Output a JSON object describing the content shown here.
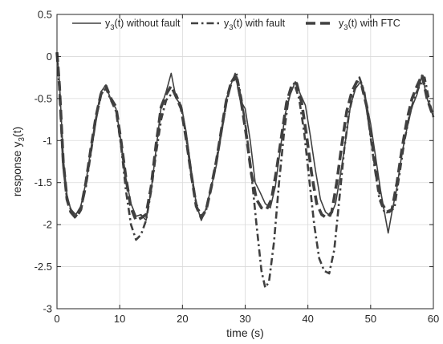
{
  "chart_data": {
    "type": "line",
    "xlabel": "time (s)",
    "ylabel": {
      "base": "response y",
      "sub": "3",
      "suffix": "(t)"
    },
    "xlim": [
      0,
      60
    ],
    "ylim": [
      -3,
      0.5
    ],
    "xticks": [
      0,
      10,
      20,
      30,
      40,
      50,
      60
    ],
    "yticks": [
      0.5,
      0,
      -0.5,
      -1,
      -1.5,
      -2,
      -2.5,
      -3
    ],
    "xtick_labels": [
      "0",
      "10",
      "20",
      "30",
      "40",
      "50",
      "60"
    ],
    "ytick_labels": [
      "0.5",
      "0",
      "-0.5",
      "-1",
      "-1.5",
      "-2",
      "-2.5",
      "-3"
    ],
    "grid": true,
    "legend_position": "top",
    "series": [
      {
        "legend": {
          "base": "y",
          "sub": "3",
          "suffix": "(t) without fault"
        },
        "style": "solid",
        "color": "#404040",
        "points": [
          [
            0,
            0.05
          ],
          [
            0.4,
            -0.3
          ],
          [
            1,
            -1.2
          ],
          [
            1.6,
            -1.65
          ],
          [
            2.2,
            -1.82
          ],
          [
            3,
            -1.88
          ],
          [
            3.8,
            -1.78
          ],
          [
            4.6,
            -1.5
          ],
          [
            5.4,
            -1.1
          ],
          [
            6.2,
            -0.72
          ],
          [
            7,
            -0.42
          ],
          [
            7.8,
            -0.34
          ],
          [
            8.6,
            -0.52
          ],
          [
            9.4,
            -0.62
          ],
          [
            10.2,
            -1.0
          ],
          [
            11,
            -1.45
          ],
          [
            11.8,
            -1.75
          ],
          [
            12.6,
            -1.9
          ],
          [
            13.4,
            -1.88
          ],
          [
            14.2,
            -1.95
          ],
          [
            15,
            -1.6
          ],
          [
            15.8,
            -1.1
          ],
          [
            16.6,
            -0.6
          ],
          [
            17.4,
            -0.42
          ],
          [
            18.2,
            -0.2
          ],
          [
            19,
            -0.5
          ],
          [
            19.8,
            -0.58
          ],
          [
            20.6,
            -0.9
          ],
          [
            21.4,
            -1.35
          ],
          [
            22.2,
            -1.75
          ],
          [
            23,
            -1.95
          ],
          [
            23.8,
            -1.8
          ],
          [
            24.6,
            -1.55
          ],
          [
            25.4,
            -1.3
          ],
          [
            26.2,
            -0.9
          ],
          [
            27,
            -0.5
          ],
          [
            27.8,
            -0.32
          ],
          [
            28.4,
            -0.2
          ],
          [
            29.2,
            -0.52
          ],
          [
            30,
            -0.62
          ],
          [
            30.8,
            -1.0
          ],
          [
            31.6,
            -1.5
          ],
          [
            32.4,
            -1.62
          ],
          [
            33.2,
            -1.75
          ],
          [
            34,
            -1.8
          ],
          [
            34.8,
            -1.55
          ],
          [
            35.6,
            -1.1
          ],
          [
            36.4,
            -0.68
          ],
          [
            37.2,
            -0.45
          ],
          [
            38,
            -0.3
          ],
          [
            38.8,
            -0.45
          ],
          [
            39.6,
            -0.58
          ],
          [
            40.4,
            -0.95
          ],
          [
            41.2,
            -1.35
          ],
          [
            42,
            -1.7
          ],
          [
            42.8,
            -1.85
          ],
          [
            43.6,
            -1.9
          ],
          [
            44.4,
            -1.75
          ],
          [
            45.2,
            -1.4
          ],
          [
            46,
            -1.0
          ],
          [
            46.8,
            -0.58
          ],
          [
            47.6,
            -0.38
          ],
          [
            48.4,
            -0.3
          ],
          [
            49.2,
            -0.52
          ],
          [
            50,
            -0.8
          ],
          [
            50.8,
            -1.2
          ],
          [
            51.6,
            -1.6
          ],
          [
            52.2,
            -1.85
          ],
          [
            52.8,
            -2.1
          ],
          [
            53.4,
            -1.85
          ],
          [
            54.2,
            -1.55
          ],
          [
            55,
            -1.15
          ],
          [
            55.8,
            -0.85
          ],
          [
            56.6,
            -0.6
          ],
          [
            57.4,
            -0.45
          ],
          [
            58.2,
            -0.22
          ],
          [
            59,
            -0.5
          ],
          [
            60,
            -0.72
          ]
        ]
      },
      {
        "legend": {
          "base": "y",
          "sub": "3",
          "suffix": "(t) with fault"
        },
        "style": "dashdot",
        "color": "#404040",
        "points": [
          [
            0,
            0.05
          ],
          [
            0.4,
            -0.4
          ],
          [
            1,
            -1.3
          ],
          [
            1.6,
            -1.7
          ],
          [
            2.2,
            -1.82
          ],
          [
            3,
            -1.9
          ],
          [
            3.8,
            -1.82
          ],
          [
            4.6,
            -1.55
          ],
          [
            5.4,
            -1.15
          ],
          [
            6.2,
            -0.75
          ],
          [
            7,
            -0.45
          ],
          [
            7.8,
            -0.38
          ],
          [
            8.6,
            -0.52
          ],
          [
            9.4,
            -0.65
          ],
          [
            10.2,
            -1.05
          ],
          [
            11,
            -1.6
          ],
          [
            11.8,
            -2.0
          ],
          [
            12.6,
            -2.18
          ],
          [
            13.4,
            -2.12
          ],
          [
            14.2,
            -1.95
          ],
          [
            15,
            -1.6
          ],
          [
            15.8,
            -1.15
          ],
          [
            16.6,
            -0.75
          ],
          [
            17.4,
            -0.52
          ],
          [
            18.2,
            -0.45
          ],
          [
            19,
            -0.45
          ],
          [
            19.8,
            -0.6
          ],
          [
            20.6,
            -0.95
          ],
          [
            21.4,
            -1.4
          ],
          [
            22.2,
            -1.75
          ],
          [
            23,
            -1.9
          ],
          [
            23.8,
            -1.82
          ],
          [
            24.6,
            -1.55
          ],
          [
            25.4,
            -1.25
          ],
          [
            26.2,
            -0.9
          ],
          [
            27,
            -0.55
          ],
          [
            27.8,
            -0.3
          ],
          [
            28.6,
            -0.2
          ],
          [
            29.4,
            -0.5
          ],
          [
            30.2,
            -0.9
          ],
          [
            31,
            -1.4
          ],
          [
            31.8,
            -2.0
          ],
          [
            32.6,
            -2.55
          ],
          [
            33.2,
            -2.75
          ],
          [
            33.8,
            -2.68
          ],
          [
            34.6,
            -2.2
          ],
          [
            35.4,
            -1.5
          ],
          [
            36.2,
            -0.9
          ],
          [
            37,
            -0.45
          ],
          [
            37.8,
            -0.32
          ],
          [
            38.6,
            -0.5
          ],
          [
            39.4,
            -0.9
          ],
          [
            40.2,
            -1.45
          ],
          [
            41,
            -2.0
          ],
          [
            41.8,
            -2.4
          ],
          [
            42.6,
            -2.55
          ],
          [
            43.4,
            -2.58
          ],
          [
            44.2,
            -2.3
          ],
          [
            45,
            -1.7
          ],
          [
            45.8,
            -1.1
          ],
          [
            46.6,
            -0.65
          ],
          [
            47.4,
            -0.4
          ],
          [
            48.2,
            -0.25
          ],
          [
            49,
            -0.42
          ],
          [
            49.8,
            -0.85
          ],
          [
            50.6,
            -1.3
          ],
          [
            51.4,
            -1.7
          ],
          [
            52.2,
            -1.85
          ],
          [
            53,
            -1.85
          ],
          [
            53.8,
            -1.8
          ],
          [
            54.6,
            -1.4
          ],
          [
            55.4,
            -1.0
          ],
          [
            56.2,
            -0.7
          ],
          [
            57,
            -0.48
          ],
          [
            57.8,
            -0.35
          ],
          [
            58.6,
            -0.25
          ],
          [
            59.4,
            -0.55
          ],
          [
            60,
            -0.72
          ]
        ]
      },
      {
        "legend": {
          "base": "y",
          "sub": "3",
          "suffix": "(t) with FTC"
        },
        "style": "dashed",
        "color": "#404040",
        "points": [
          [
            0,
            0.05
          ],
          [
            0.4,
            -0.35
          ],
          [
            1,
            -1.25
          ],
          [
            1.6,
            -1.7
          ],
          [
            2.2,
            -1.85
          ],
          [
            3,
            -1.92
          ],
          [
            3.8,
            -1.82
          ],
          [
            4.6,
            -1.5
          ],
          [
            5.4,
            -1.1
          ],
          [
            6.2,
            -0.72
          ],
          [
            7,
            -0.45
          ],
          [
            7.8,
            -0.35
          ],
          [
            8.6,
            -0.5
          ],
          [
            9.4,
            -0.6
          ],
          [
            10.2,
            -1.0
          ],
          [
            11,
            -1.45
          ],
          [
            11.8,
            -1.8
          ],
          [
            12.6,
            -1.95
          ],
          [
            13.4,
            -1.92
          ],
          [
            14.2,
            -1.88
          ],
          [
            15,
            -1.55
          ],
          [
            15.8,
            -1.05
          ],
          [
            16.6,
            -0.6
          ],
          [
            17.4,
            -0.45
          ],
          [
            18.2,
            -0.35
          ],
          [
            19,
            -0.48
          ],
          [
            19.8,
            -0.62
          ],
          [
            20.6,
            -0.98
          ],
          [
            21.4,
            -1.4
          ],
          [
            22.2,
            -1.78
          ],
          [
            23,
            -1.92
          ],
          [
            23.8,
            -1.82
          ],
          [
            24.6,
            -1.55
          ],
          [
            25.4,
            -1.25
          ],
          [
            26.2,
            -0.88
          ],
          [
            27,
            -0.52
          ],
          [
            27.8,
            -0.3
          ],
          [
            28.6,
            -0.25
          ],
          [
            29.4,
            -0.55
          ],
          [
            30.2,
            -0.95
          ],
          [
            31,
            -1.4
          ],
          [
            31.8,
            -1.7
          ],
          [
            32.6,
            -1.8
          ],
          [
            33.4,
            -1.82
          ],
          [
            34.2,
            -1.7
          ],
          [
            35,
            -1.35
          ],
          [
            35.8,
            -0.95
          ],
          [
            36.6,
            -0.55
          ],
          [
            37.4,
            -0.35
          ],
          [
            38.2,
            -0.32
          ],
          [
            39,
            -0.55
          ],
          [
            39.8,
            -0.95
          ],
          [
            40.6,
            -1.4
          ],
          [
            41.4,
            -1.75
          ],
          [
            42.2,
            -1.88
          ],
          [
            43,
            -1.92
          ],
          [
            43.8,
            -1.85
          ],
          [
            44.6,
            -1.5
          ],
          [
            45.4,
            -1.05
          ],
          [
            46.2,
            -0.65
          ],
          [
            47,
            -0.42
          ],
          [
            47.8,
            -0.3
          ],
          [
            48.6,
            -0.35
          ],
          [
            49.4,
            -0.6
          ],
          [
            50.2,
            -1.0
          ],
          [
            51,
            -1.45
          ],
          [
            51.8,
            -1.75
          ],
          [
            52.6,
            -1.85
          ],
          [
            53.4,
            -1.82
          ],
          [
            54.2,
            -1.5
          ],
          [
            55,
            -1.1
          ],
          [
            55.8,
            -0.75
          ],
          [
            56.6,
            -0.5
          ],
          [
            57.4,
            -0.35
          ],
          [
            58.2,
            -0.22
          ],
          [
            59,
            -0.5
          ],
          [
            60,
            -0.72
          ]
        ]
      }
    ]
  }
}
